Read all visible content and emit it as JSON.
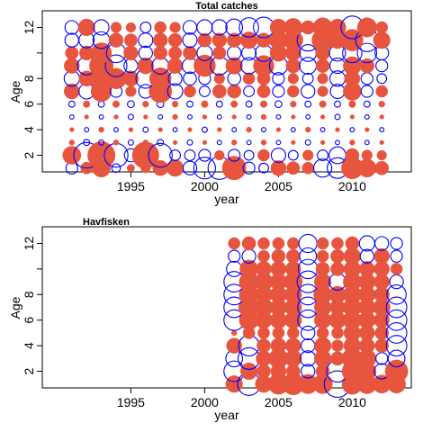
{
  "chart_data": [
    {
      "type": "scatter",
      "title": "Total catches",
      "xlabel": "year",
      "ylabel": "Age",
      "xlim": [
        1989,
        2014
      ],
      "ylim": [
        0.7,
        13.3
      ],
      "x_ticks": [
        1995,
        2000,
        2005,
        2010
      ],
      "y_ticks": [
        2,
        4,
        6,
        8,
        12
      ],
      "y_minor_ticks": [
        10
      ],
      "marker_encoding": {
        "positive": {
          "style": "filled",
          "color": "#e8553f"
        },
        "negative": {
          "style": "open",
          "color": "#0000ff"
        }
      },
      "years": [
        1991,
        1992,
        1993,
        1994,
        1995,
        1996,
        1997,
        1998,
        1999,
        2000,
        2001,
        2002,
        2003,
        2004,
        2005,
        2006,
        2007,
        2008,
        2009,
        2010,
        2011,
        2012
      ],
      "ages": [
        1,
        2,
        3,
        4,
        5,
        6,
        7,
        8,
        9,
        10,
        11,
        12
      ],
      "residuals": [
        [
          -0.15,
          0.15,
          0.35,
          -0.08,
          0.06,
          0.1,
          0.25,
          0.3,
          -0.2,
          -0.5,
          -0.55,
          0.6,
          -0.15,
          -0.1,
          0.25,
          0.18,
          0.15,
          -0.35,
          -0.45,
          0.5,
          0.35,
          0.2
        ],
        [
          0.35,
          -0.7,
          0.8,
          -0.6,
          -0.18,
          0.75,
          -0.6,
          -0.12,
          -0.12,
          -0.15,
          0.1,
          -0.15,
          -0.1,
          0.15,
          -0.22,
          -0.1,
          0.12,
          -0.12,
          -0.3,
          0.2,
          0.12,
          0.1
        ],
        [
          0.03,
          -0.04,
          -0.03,
          0.03,
          -0.03,
          0.03,
          -0.04,
          0.02,
          -0.03,
          0.02,
          -0.02,
          0.03,
          -0.02,
          0.03,
          -0.02,
          0.02,
          -0.03,
          0.02,
          -0.02,
          0.03,
          -0.02,
          0.02
        ],
        [
          0.02,
          -0.02,
          0.03,
          -0.02,
          0.02,
          -0.03,
          0.02,
          -0.02,
          0.02,
          -0.03,
          0.02,
          -0.02,
          0.03,
          -0.02,
          0.02,
          -0.02,
          0.03,
          -0.02,
          0.02,
          -0.02,
          0.02,
          -0.02
        ],
        [
          -0.02,
          0.02,
          -0.02,
          0.02,
          -0.03,
          0.02,
          -0.02,
          0.03,
          -0.02,
          0.02,
          -0.02,
          0.02,
          -0.02,
          0.03,
          -0.02,
          0.02,
          -0.02,
          0.02,
          -0.03,
          0.02,
          -0.02,
          0.02
        ],
        [
          -0.04,
          0.05,
          -0.04,
          0.05,
          -0.05,
          0.04,
          -0.05,
          0.04,
          -0.04,
          0.05,
          -0.04,
          0.05,
          -0.04,
          0.05,
          -0.05,
          0.04,
          -0.04,
          0.05,
          -0.04,
          0.05,
          -0.04,
          0.04
        ],
        [
          0.25,
          -0.25,
          0.45,
          -0.15,
          0.12,
          -0.2,
          0.55,
          -0.25,
          0.15,
          -0.12,
          0.2,
          0.2,
          -0.12,
          0.18,
          -0.15,
          0.15,
          -0.2,
          0.12,
          -0.22,
          0.35,
          -0.15,
          0.15
        ],
        [
          -0.25,
          0.25,
          0.55,
          0.45,
          0.25,
          -0.4,
          0.5,
          -0.2,
          -0.18,
          -0.15,
          0.12,
          -0.18,
          0.15,
          0.18,
          -0.15,
          0.12,
          -0.12,
          0.12,
          -0.25,
          0.25,
          -0.15,
          -0.1
        ],
        [
          0.25,
          -0.35,
          0.6,
          -0.5,
          -0.2,
          0.28,
          -0.3,
          0.25,
          -0.25,
          0.5,
          -0.35,
          0.3,
          -0.28,
          0.45,
          -0.35,
          0.22,
          -0.3,
          0.2,
          -0.25,
          0.35,
          0.22,
          -0.15
        ],
        [
          0.18,
          0.22,
          0.45,
          -0.4,
          0.22,
          -0.2,
          0.2,
          0.18,
          0.2,
          -0.25,
          0.18,
          -0.2,
          -0.22,
          -0.3,
          0.3,
          0.25,
          -0.3,
          0.22,
          -0.28,
          -0.4,
          -0.4,
          -0.2
        ],
        [
          -0.2,
          -0.25,
          -0.3,
          0.22,
          0.18,
          -0.22,
          0.22,
          0.2,
          -0.22,
          0.2,
          0.22,
          0.22,
          0.3,
          0.22,
          0.35,
          0.4,
          -0.5,
          0.5,
          0.3,
          0.5,
          -0.55,
          0.3
        ],
        [
          -0.2,
          0.3,
          -0.25,
          0.12,
          0.1,
          -0.12,
          0.15,
          0.12,
          -0.2,
          -0.25,
          -0.25,
          -0.3,
          -0.4,
          -0.45,
          0.3,
          0.35,
          0.2,
          0.4,
          0.3,
          -0.55,
          0.4,
          0.15
        ]
      ]
    },
    {
      "type": "scatter",
      "title": "Havfisken",
      "xlabel": "year",
      "ylabel": "Age",
      "xlim": [
        1989,
        2014
      ],
      "ylim": [
        0.7,
        13.3
      ],
      "x_ticks": [
        1995,
        2000,
        2005,
        2010
      ],
      "y_ticks": [
        2,
        4,
        6,
        8,
        12
      ],
      "y_minor_ticks": [
        10
      ],
      "marker_encoding": {
        "positive": {
          "style": "filled",
          "color": "#e8553f"
        },
        "negative": {
          "style": "open",
          "color": "#0000ff"
        }
      },
      "years": [
        2002,
        2003,
        2004,
        2005,
        2006,
        2007,
        2008,
        2009,
        2010,
        2011,
        2012,
        2013
      ],
      "ages": [
        1,
        2,
        3,
        4,
        5,
        6,
        7,
        8,
        9,
        10,
        11,
        12
      ],
      "residuals": [
        [
          0.3,
          -0.55,
          0.3,
          0.45,
          0.5,
          0.4,
          0.4,
          -0.75,
          0.45,
          0.4,
          0.35,
          0.35
        ],
        [
          -0.45,
          0.3,
          0.2,
          0.25,
          0.2,
          -0.2,
          0.2,
          -0.5,
          0.45,
          0.35,
          -0.25,
          0.55
        ],
        [
          -0.3,
          -0.5,
          0.25,
          0.4,
          0.3,
          -0.25,
          0.3,
          0.2,
          0.45,
          0.35,
          -0.15,
          -0.3
        ],
        [
          0.25,
          -0.45,
          0.2,
          0.25,
          0.25,
          -0.2,
          0.3,
          0.15,
          0.3,
          0.25,
          0.2,
          -0.45
        ],
        [
          0.03,
          0.15,
          0.15,
          0.15,
          0.15,
          -0.2,
          0.15,
          0.15,
          0.3,
          0.25,
          0.2,
          -0.45
        ],
        [
          -0.45,
          0.4,
          0.3,
          0.3,
          0.3,
          -0.45,
          0.3,
          0.3,
          0.35,
          0.3,
          0.25,
          -0.45
        ],
        [
          -0.45,
          0.45,
          0.35,
          0.3,
          0.3,
          -0.45,
          0.3,
          0.25,
          0.35,
          0.3,
          0.3,
          -0.45
        ],
        [
          -0.45,
          0.4,
          0.3,
          0.3,
          0.3,
          -0.45,
          0.35,
          0.3,
          0.35,
          0.3,
          0.25,
          -0.4
        ],
        [
          -0.45,
          0.4,
          0.35,
          0.3,
          0.35,
          -0.5,
          0.3,
          -0.3,
          0.35,
          0.3,
          0.25,
          -0.2
        ],
        [
          -0.25,
          0.35,
          0.25,
          0.25,
          0.25,
          -0.4,
          0.2,
          0.2,
          0.3,
          0.25,
          0.25,
          0.15
        ],
        [
          -0.15,
          -0.2,
          0.15,
          0.2,
          0.2,
          -0.3,
          0.15,
          0.2,
          0.3,
          -0.2,
          0.25,
          -0.15
        ],
        [
          0.15,
          0.2,
          0.15,
          0.15,
          0.15,
          -0.35,
          0.15,
          0.15,
          0.2,
          -0.25,
          -0.2,
          -0.15
        ]
      ]
    }
  ]
}
